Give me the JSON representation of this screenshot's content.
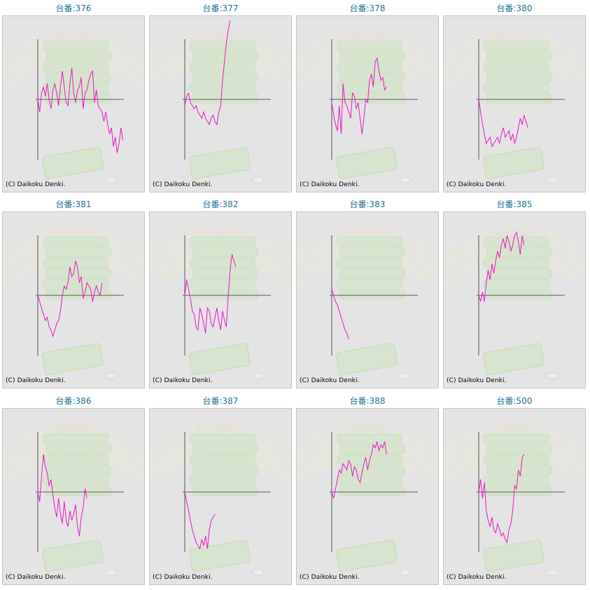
{
  "colors": {
    "line": "#e815c8",
    "axis": "#555555",
    "title": "#1f6f93",
    "panel": "#e4e4e4"
  },
  "charts": [
    {
      "title": "台番:376",
      "copyright": "(C) Daikoku Denki."
    },
    {
      "title": "台番:377",
      "copyright": "(C) Daikoku Denki."
    },
    {
      "title": "台番:378",
      "copyright": "(C) Daikoku Denki."
    },
    {
      "title": "台番:380",
      "copyright": "(C) Daikoku Denki."
    },
    {
      "title": "台番:381",
      "copyright": "(C) Daikoku Denki."
    },
    {
      "title": "台番:382",
      "copyright": "(C) Daikoku Denki."
    },
    {
      "title": "台番:383",
      "copyright": "(C) Daikoku Denki."
    },
    {
      "title": "台番:385",
      "copyright": "(C) Daikoku Denki."
    },
    {
      "title": "台番:386",
      "copyright": "(C) Daikoku Denki."
    },
    {
      "title": "台番:387",
      "copyright": "(C) Daikoku Denki."
    },
    {
      "title": "台番:388",
      "copyright": "(C) Daikoku Denki."
    },
    {
      "title": "台番:500",
      "copyright": "(C) Daikoku Denki."
    }
  ],
  "chart_data": [
    {
      "type": "line",
      "title": "台番:376",
      "series": [
        {
          "values": [
            0,
            -20,
            10,
            20,
            5,
            25,
            0,
            -15,
            15,
            25,
            10,
            -10,
            20,
            45,
            20,
            -5,
            -10,
            25,
            50,
            10,
            -5,
            15,
            20,
            35,
            -15,
            10,
            15,
            30,
            40,
            45,
            -5,
            15,
            -10,
            -15,
            -20,
            -35,
            -20,
            -40,
            -55,
            -45,
            -75,
            -60,
            -85,
            -70,
            -45,
            -65
          ]
        }
      ]
    },
    {
      "type": "line",
      "title": "台番:377",
      "series": [
        {
          "values": [
            -10,
            5,
            10,
            -5,
            -10,
            -15,
            -10,
            -20,
            -25,
            -30,
            -20,
            -30,
            -35,
            -40,
            -30,
            -25,
            -35,
            -40,
            -20,
            -10,
            30,
            60,
            90,
            110,
            125
          ]
        }
      ]
    },
    {
      "type": "line",
      "title": "台番:378",
      "series": [
        {
          "values": [
            -5,
            -25,
            -40,
            -50,
            -10,
            -55,
            25,
            -5,
            -10,
            -20,
            -30,
            10,
            5,
            -15,
            -5,
            -30,
            -55,
            -30,
            0,
            -5,
            30,
            40,
            20,
            60,
            65,
            45,
            30,
            35,
            15,
            20
          ]
        }
      ]
    },
    {
      "type": "line",
      "title": "台番:380",
      "series": [
        {
          "values": [
            0,
            -20,
            -40,
            -55,
            -70,
            -65,
            -60,
            -75,
            -70,
            -65,
            -60,
            -70,
            -55,
            -45,
            -60,
            -55,
            -50,
            -65,
            -55,
            -70,
            -60,
            -45,
            -30,
            -40,
            -25,
            -35,
            -45
          ]
        }
      ]
    },
    {
      "type": "line",
      "title": "台番:381",
      "series": [
        {
          "values": [
            0,
            -10,
            -20,
            -30,
            -40,
            -35,
            -50,
            -55,
            -65,
            -55,
            -45,
            -40,
            -25,
            0,
            15,
            10,
            20,
            45,
            30,
            35,
            55,
            45,
            20,
            30,
            -5,
            5,
            20,
            15,
            10,
            -10,
            5,
            15,
            5,
            0,
            20
          ]
        }
      ]
    },
    {
      "type": "line",
      "title": "台番:382",
      "series": [
        {
          "values": [
            0,
            25,
            10,
            -5,
            -25,
            -30,
            -50,
            -55,
            -20,
            -30,
            -45,
            -60,
            -20,
            -25,
            -45,
            -50,
            -35,
            -20,
            -40,
            -55,
            -25,
            -40,
            -50,
            0,
            40,
            65,
            55,
            45
          ]
        }
      ]
    },
    {
      "type": "line",
      "title": "台番:383",
      "series": [
        {
          "values": [
            10,
            0,
            -10,
            -15,
            -25,
            -35,
            -45,
            -55,
            -60,
            -70
          ]
        }
      ]
    },
    {
      "type": "line",
      "title": "台番:385",
      "series": [
        {
          "values": [
            0,
            -10,
            5,
            -10,
            20,
            40,
            25,
            50,
            35,
            55,
            70,
            60,
            80,
            90,
            75,
            95,
            85,
            70,
            80,
            95,
            100,
            85,
            65,
            95,
            80
          ]
        }
      ]
    },
    {
      "type": "line",
      "title": "台番:386",
      "series": [
        {
          "values": [
            0,
            -15,
            25,
            60,
            40,
            30,
            10,
            20,
            -5,
            -25,
            -40,
            -10,
            -35,
            -50,
            -15,
            -45,
            -55,
            -30,
            -45,
            -35,
            -20,
            -55,
            -70,
            -40,
            -25,
            5,
            -10
          ]
        }
      ]
    },
    {
      "type": "line",
      "title": "台番:387",
      "series": [
        {
          "values": [
            0,
            -15,
            -30,
            -45,
            -60,
            -70,
            -80,
            -85,
            -90,
            -75,
            -85,
            -70,
            -90,
            -60,
            -45,
            -40,
            -35
          ]
        }
      ]
    },
    {
      "type": "line",
      "title": "台番:388",
      "series": [
        {
          "values": [
            0,
            -10,
            5,
            20,
            35,
            30,
            45,
            40,
            35,
            50,
            45,
            25,
            40,
            35,
            20,
            15,
            30,
            45,
            55,
            35,
            50,
            60,
            75,
            70,
            80,
            65,
            75,
            70,
            80,
            60
          ]
        }
      ]
    },
    {
      "type": "line",
      "title": "台番:500",
      "series": [
        {
          "values": [
            0,
            20,
            -10,
            15,
            -30,
            -45,
            -55,
            -40,
            -60,
            -65,
            -50,
            -60,
            -70,
            -65,
            -75,
            -80,
            -60,
            -50,
            -30,
            10,
            5,
            35,
            25,
            55,
            60
          ]
        }
      ]
    }
  ]
}
